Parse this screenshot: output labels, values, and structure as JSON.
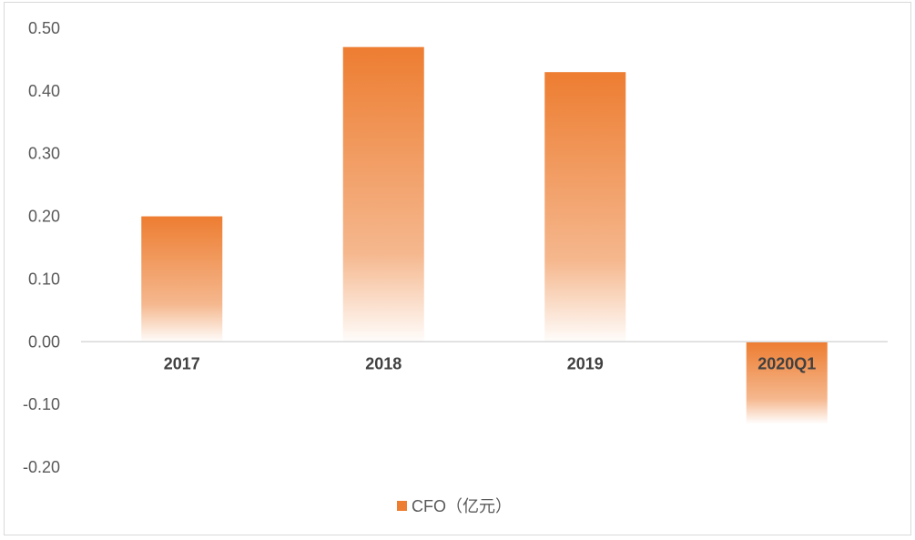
{
  "chart_data": {
    "type": "bar",
    "categories": [
      "2017",
      "2018",
      "2019",
      "2020Q1"
    ],
    "series": [
      {
        "name": "CFO（亿元）",
        "values": [
          0.2,
          0.47,
          0.43,
          -0.13
        ]
      }
    ],
    "title": "",
    "xlabel": "",
    "ylabel": "",
    "ylim": [
      -0.2,
      0.5
    ],
    "yticks": [
      "0.50",
      "0.40",
      "0.30",
      "0.20",
      "0.10",
      "0.00",
      "-0.10",
      "-0.20"
    ],
    "ytick_values": [
      0.5,
      0.4,
      0.3,
      0.2,
      0.1,
      0.0,
      -0.1,
      -0.2
    ],
    "grid": false,
    "legend_position": "bottom",
    "bar_color": "#ed7d31"
  }
}
